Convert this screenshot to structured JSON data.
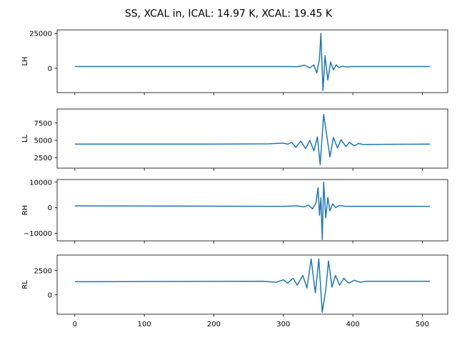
{
  "chart_data": {
    "type": "line",
    "title": "SS, XCAL in, ICAL: 14.97 K, XCAL: 19.45 K",
    "xlim": [
      -25.5,
      536.5
    ],
    "xticks": [
      0,
      100,
      200,
      300,
      400,
      500
    ],
    "xtick_labels": [
      "0",
      "100",
      "200",
      "300",
      "400",
      "500"
    ],
    "sharex": true,
    "line_color": "#1f77b4",
    "panels": [
      {
        "ylabel": "LH",
        "ylim": [
          -17500,
          27500
        ],
        "yticks": [
          0,
          25000
        ],
        "ytick_labels": [
          "0",
          "25000"
        ],
        "baseline": 1200,
        "points": [
          [
            0,
            1200
          ],
          [
            300,
            1200
          ],
          [
            320,
            1100
          ],
          [
            330,
            2200
          ],
          [
            338,
            300
          ],
          [
            344,
            2400
          ],
          [
            348,
            -3500
          ],
          [
            352,
            6500
          ],
          [
            354,
            25000
          ],
          [
            357,
            -16000
          ],
          [
            360,
            9000
          ],
          [
            364,
            -8500
          ],
          [
            368,
            4500
          ],
          [
            372,
            -1200
          ],
          [
            376,
            2400
          ],
          [
            380,
            500
          ],
          [
            385,
            1500
          ],
          [
            390,
            1000
          ],
          [
            400,
            1200
          ],
          [
            511,
            1200
          ]
        ]
      },
      {
        "ylabel": "LL",
        "ylim": [
          1000,
          9500
        ],
        "yticks": [
          2500,
          5000,
          7500
        ],
        "ytick_labels": [
          "2500",
          "5000",
          "7500"
        ],
        "baseline": 4500,
        "points": [
          [
            0,
            4450
          ],
          [
            200,
            4450
          ],
          [
            280,
            4500
          ],
          [
            300,
            4600
          ],
          [
            306,
            4450
          ],
          [
            312,
            4700
          ],
          [
            318,
            4000
          ],
          [
            325,
            4900
          ],
          [
            332,
            3800
          ],
          [
            338,
            5000
          ],
          [
            344,
            3500
          ],
          [
            349,
            5500
          ],
          [
            353,
            1500
          ],
          [
            358,
            8700
          ],
          [
            362,
            6000
          ],
          [
            367,
            2600
          ],
          [
            372,
            5400
          ],
          [
            378,
            3900
          ],
          [
            383,
            5100
          ],
          [
            390,
            4100
          ],
          [
            395,
            4700
          ],
          [
            402,
            4200
          ],
          [
            408,
            4550
          ],
          [
            415,
            4400
          ],
          [
            511,
            4450
          ]
        ]
      },
      {
        "ylabel": "RH",
        "ylim": [
          -13000,
          11000
        ],
        "yticks": [
          -10000,
          0,
          10000
        ],
        "ytick_labels": [
          "−10000",
          "0",
          "10000"
        ],
        "baseline": 500,
        "points": [
          [
            0,
            700
          ],
          [
            300,
            500
          ],
          [
            320,
            700
          ],
          [
            330,
            300
          ],
          [
            336,
            1000
          ],
          [
            342,
            -500
          ],
          [
            347,
            2000
          ],
          [
            350,
            7800
          ],
          [
            352,
            -3000
          ],
          [
            354,
            4000
          ],
          [
            356,
            -12500
          ],
          [
            358,
            10000
          ],
          [
            361,
            -4000
          ],
          [
            364,
            4000
          ],
          [
            367,
            -1200
          ],
          [
            371,
            1500
          ],
          [
            375,
            0
          ],
          [
            380,
            800
          ],
          [
            390,
            500
          ],
          [
            511,
            500
          ]
        ]
      },
      {
        "ylabel": "RL",
        "ylim": [
          -2000,
          4100
        ],
        "yticks": [
          0,
          2500
        ],
        "ytick_labels": [
          "0",
          "2500"
        ],
        "baseline": 1400,
        "points": [
          [
            0,
            1350
          ],
          [
            270,
            1400
          ],
          [
            290,
            1300
          ],
          [
            300,
            1550
          ],
          [
            306,
            1200
          ],
          [
            314,
            1700
          ],
          [
            320,
            1000
          ],
          [
            328,
            2000
          ],
          [
            334,
            700
          ],
          [
            340,
            3700
          ],
          [
            346,
            200
          ],
          [
            351,
            3700
          ],
          [
            356,
            -1800
          ],
          [
            361,
            500
          ],
          [
            365,
            3500
          ],
          [
            370,
            800
          ],
          [
            375,
            2000
          ],
          [
            381,
            1000
          ],
          [
            387,
            1700
          ],
          [
            394,
            1200
          ],
          [
            402,
            1500
          ],
          [
            410,
            1300
          ],
          [
            420,
            1400
          ],
          [
            511,
            1400
          ]
        ]
      }
    ]
  }
}
